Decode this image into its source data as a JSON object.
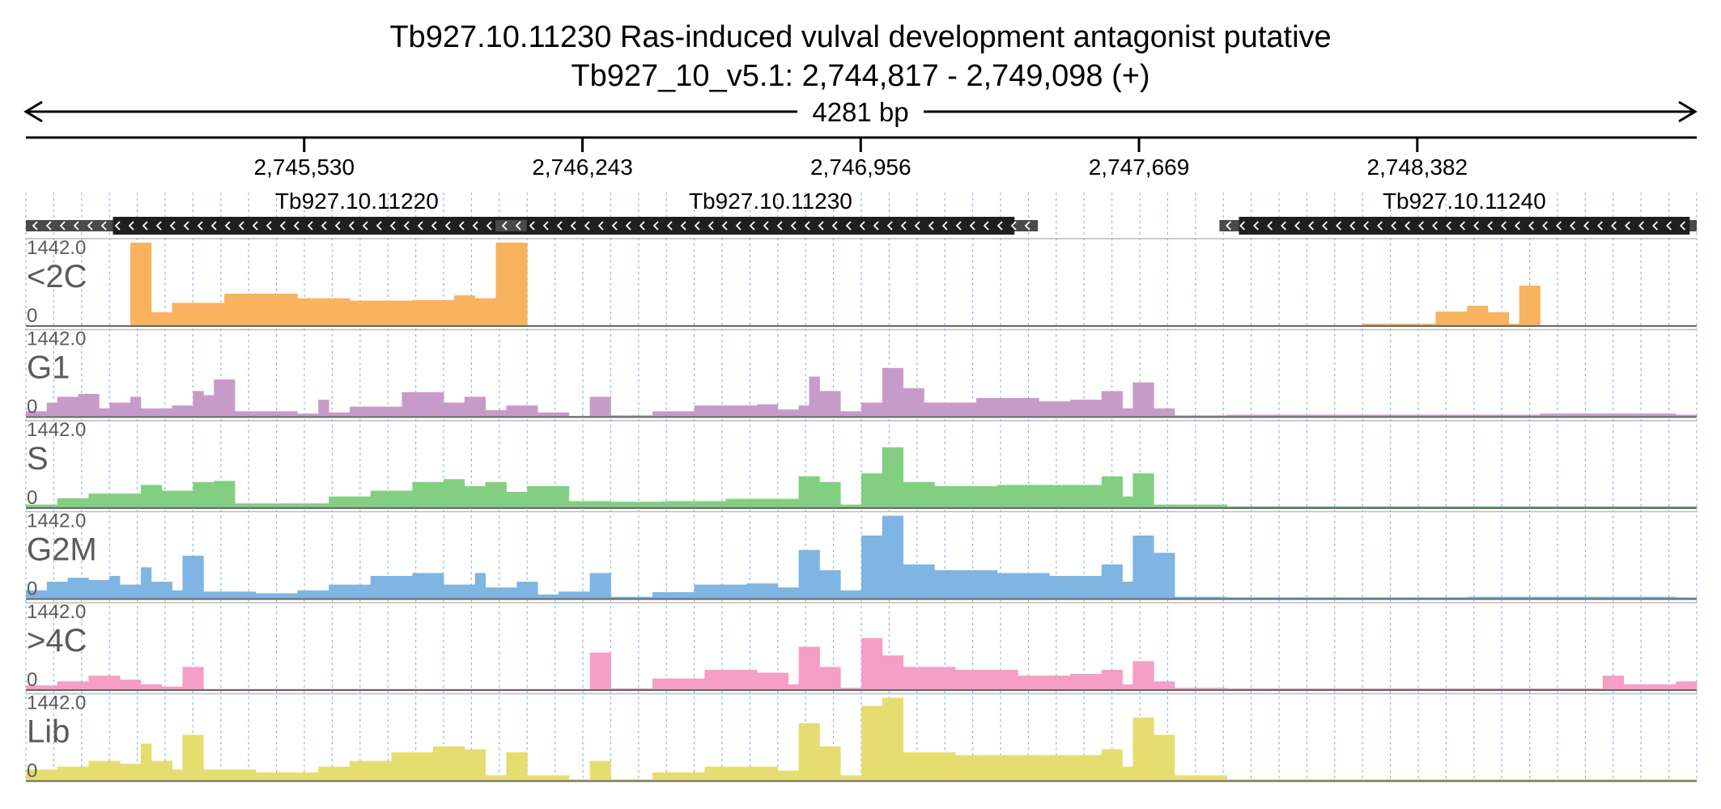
{
  "header": {
    "title": "Tb927.10.11230  Ras-induced vulval development antagonist  putative",
    "subtitle": "Tb927_10_v5.1: 2,744,817 - 2,749,098 (+)",
    "span_label": "4281 bp"
  },
  "colors": {
    "ruler": "#000000",
    "gene_fill": "#1f1f1f",
    "utr_fill": "#4a4a4a",
    "grid": "#6fa8dc",
    "track_label": "#5a5a5a",
    "baseline": "#666666"
  },
  "chart_data": {
    "type": "bar",
    "genome_range": [
      2744817,
      2749098
    ],
    "ruler_ticks": [
      {
        "pos": 2745530,
        "label": "2,745,530"
      },
      {
        "pos": 2746243,
        "label": "2,746,243"
      },
      {
        "pos": 2746956,
        "label": "2,746,956"
      },
      {
        "pos": 2747669,
        "label": "2,747,669"
      },
      {
        "pos": 2748382,
        "label": "2,748,382"
      }
    ],
    "genes": [
      {
        "name": "Tb927.10.11220",
        "strand": "-",
        "start": 2744817,
        "end": 2746318,
        "cds_start": 2745040,
        "cds_end": 2746290
      },
      {
        "name": "Tb927.10.11230",
        "strand": "-",
        "start": 2746020,
        "end": 2747410,
        "cds_start": 2746100,
        "cds_end": 2747350
      },
      {
        "name": "Tb927.10.11240",
        "strand": "-",
        "start": 2747875,
        "end": 2749098,
        "cds_start": 2747925,
        "cds_end": 2749080
      }
    ],
    "tracks": [
      {
        "name": "<2C",
        "color": "#f9b25e",
        "ymax_label": "1442.0",
        "ymin_label": "0",
        "ylim": [
          0,
          1442
        ],
        "series": []
      },
      {
        "name": "G1",
        "color": "#c79bc9",
        "ymax_label": "1442.0",
        "ymin_label": "0",
        "ylim": [
          0,
          1442
        ],
        "series": []
      },
      {
        "name": "S",
        "color": "#82cf82",
        "ymax_label": "1442.0",
        "ymin_label": "0",
        "ylim": [
          0,
          1442
        ],
        "series": []
      },
      {
        "name": "G2M",
        "color": "#7fb5e3",
        "ymax_label": "1442.0",
        "ymin_label": "0",
        "ylim": [
          0,
          1442
        ],
        "series": []
      },
      {
        "name": ">4C",
        "color": "#f59ec6",
        "ymax_label": "1442.0",
        "ymin_label": "0",
        "ylim": [
          0,
          1442
        ],
        "series": []
      },
      {
        "name": "Lib",
        "color": "#e6dd71",
        "ymax_label": "1442.0",
        "ymin_label": "0",
        "ylim": [
          0,
          1442
        ],
        "series": []
      }
    ],
    "profiles": {
      "<2C": [
        [
          2744817,
          0
        ],
        [
          2745080,
          0
        ],
        [
          2745090,
          1442
        ],
        [
          2745135,
          1442
        ],
        [
          2745150,
          240
        ],
        [
          2745200,
          400
        ],
        [
          2745330,
          560
        ],
        [
          2745500,
          480
        ],
        [
          2745650,
          440
        ],
        [
          2745800,
          450
        ],
        [
          2745920,
          530
        ],
        [
          2745970,
          480
        ],
        [
          2746020,
          150
        ],
        [
          2746030,
          1442
        ],
        [
          2746080,
          1442
        ],
        [
          2746090,
          0
        ],
        [
          2747900,
          10
        ],
        [
          2748050,
          10
        ],
        [
          2748250,
          40
        ],
        [
          2748420,
          250
        ],
        [
          2748500,
          350
        ],
        [
          2748560,
          240
        ],
        [
          2748620,
          40
        ],
        [
          2748630,
          700
        ],
        [
          2748680,
          700
        ],
        [
          2748690,
          0
        ],
        [
          2749098,
          0
        ]
      ],
      "G1": [
        [
          2744817,
          100
        ],
        [
          2744860,
          250
        ],
        [
          2744910,
          350
        ],
        [
          2744960,
          400
        ],
        [
          2745010,
          150
        ],
        [
          2745040,
          250
        ],
        [
          2745080,
          350
        ],
        [
          2745120,
          150
        ],
        [
          2745180,
          200
        ],
        [
          2745250,
          450
        ],
        [
          2745280,
          380
        ],
        [
          2745310,
          650
        ],
        [
          2745360,
          100
        ],
        [
          2745500,
          60
        ],
        [
          2745560,
          300
        ],
        [
          2745600,
          80
        ],
        [
          2745650,
          180
        ],
        [
          2745780,
          430
        ],
        [
          2745900,
          250
        ],
        [
          2745950,
          350
        ],
        [
          2746000,
          120
        ],
        [
          2746040,
          200
        ],
        [
          2746120,
          80
        ],
        [
          2746220,
          20
        ],
        [
          2746260,
          350
        ],
        [
          2746320,
          30
        ],
        [
          2746420,
          100
        ],
        [
          2746530,
          200
        ],
        [
          2746700,
          220
        ],
        [
          2746740,
          130
        ],
        [
          2746790,
          200
        ],
        [
          2746820,
          700
        ],
        [
          2746860,
          450
        ],
        [
          2746900,
          100
        ],
        [
          2746960,
          250
        ],
        [
          2747000,
          850
        ],
        [
          2747060,
          500
        ],
        [
          2747120,
          250
        ],
        [
          2747250,
          330
        ],
        [
          2747400,
          270
        ],
        [
          2747500,
          300
        ],
        [
          2747560,
          450
        ],
        [
          2747620,
          150
        ],
        [
          2747660,
          600
        ],
        [
          2747700,
          150
        ],
        [
          2747760,
          30
        ],
        [
          2747900,
          40
        ],
        [
          2748200,
          40
        ],
        [
          2748700,
          60
        ],
        [
          2749050,
          40
        ]
      ],
      "S": [
        [
          2744817,
          60
        ],
        [
          2744900,
          170
        ],
        [
          2744980,
          250
        ],
        [
          2745100,
          400
        ],
        [
          2745160,
          300
        ],
        [
          2745250,
          450
        ],
        [
          2745310,
          470
        ],
        [
          2745360,
          80
        ],
        [
          2745500,
          80
        ],
        [
          2745600,
          200
        ],
        [
          2745700,
          300
        ],
        [
          2745800,
          450
        ],
        [
          2745900,
          500
        ],
        [
          2745950,
          380
        ],
        [
          2746000,
          450
        ],
        [
          2746060,
          280
        ],
        [
          2746100,
          380
        ],
        [
          2746200,
          120
        ],
        [
          2746320,
          110
        ],
        [
          2746450,
          120
        ],
        [
          2746600,
          160
        ],
        [
          2746740,
          160
        ],
        [
          2746800,
          550
        ],
        [
          2746860,
          450
        ],
        [
          2746900,
          60
        ],
        [
          2746960,
          600
        ],
        [
          2747000,
          1050
        ],
        [
          2747060,
          450
        ],
        [
          2747150,
          380
        ],
        [
          2747300,
          400
        ],
        [
          2747450,
          400
        ],
        [
          2747560,
          550
        ],
        [
          2747620,
          200
        ],
        [
          2747660,
          600
        ],
        [
          2747700,
          60
        ],
        [
          2747900,
          30
        ],
        [
          2748500,
          30
        ],
        [
          2749050,
          30
        ]
      ],
      "G2M": [
        [
          2744817,
          150
        ],
        [
          2744860,
          300
        ],
        [
          2744920,
          370
        ],
        [
          2744980,
          330
        ],
        [
          2745020,
          400
        ],
        [
          2745060,
          250
        ],
        [
          2745100,
          550
        ],
        [
          2745140,
          300
        ],
        [
          2745180,
          150
        ],
        [
          2745210,
          750
        ],
        [
          2745260,
          130
        ],
        [
          2745400,
          100
        ],
        [
          2745500,
          150
        ],
        [
          2745600,
          250
        ],
        [
          2745700,
          400
        ],
        [
          2745800,
          450
        ],
        [
          2745900,
          250
        ],
        [
          2745960,
          450
        ],
        [
          2746000,
          200
        ],
        [
          2746080,
          300
        ],
        [
          2746120,
          80
        ],
        [
          2746180,
          130
        ],
        [
          2746260,
          450
        ],
        [
          2746320,
          40
        ],
        [
          2746420,
          120
        ],
        [
          2746520,
          250
        ],
        [
          2746650,
          270
        ],
        [
          2746740,
          200
        ],
        [
          2746800,
          850
        ],
        [
          2746860,
          500
        ],
        [
          2746900,
          150
        ],
        [
          2746960,
          1100
        ],
        [
          2747000,
          1442
        ],
        [
          2747060,
          600
        ],
        [
          2747150,
          500
        ],
        [
          2747300,
          450
        ],
        [
          2747450,
          400
        ],
        [
          2747560,
          600
        ],
        [
          2747620,
          300
        ],
        [
          2747660,
          1100
        ],
        [
          2747700,
          800
        ],
        [
          2747760,
          40
        ],
        [
          2747900,
          30
        ],
        [
          2748500,
          40
        ],
        [
          2749050,
          30
        ]
      ],
      ">4C": [
        [
          2744817,
          80
        ],
        [
          2744900,
          150
        ],
        [
          2744980,
          250
        ],
        [
          2745060,
          180
        ],
        [
          2745120,
          100
        ],
        [
          2745160,
          60
        ],
        [
          2745210,
          400
        ],
        [
          2745260,
          20
        ],
        [
          2746200,
          20
        ],
        [
          2746260,
          650
        ],
        [
          2746320,
          30
        ],
        [
          2746420,
          200
        ],
        [
          2746560,
          350
        ],
        [
          2746680,
          300
        ],
        [
          2746760,
          100
        ],
        [
          2746800,
          750
        ],
        [
          2746860,
          400
        ],
        [
          2746900,
          40
        ],
        [
          2746960,
          900
        ],
        [
          2747000,
          600
        ],
        [
          2747060,
          400
        ],
        [
          2747200,
          350
        ],
        [
          2747350,
          250
        ],
        [
          2747500,
          280
        ],
        [
          2747560,
          350
        ],
        [
          2747620,
          100
        ],
        [
          2747660,
          500
        ],
        [
          2747700,
          150
        ],
        [
          2747760,
          40
        ],
        [
          2747900,
          30
        ],
        [
          2748500,
          30
        ],
        [
          2748850,
          40
        ],
        [
          2748870,
          250
        ],
        [
          2748920,
          100
        ],
        [
          2749050,
          150
        ],
        [
          2749098,
          150
        ]
      ],
      "Lib": [
        [
          2744817,
          200
        ],
        [
          2744900,
          250
        ],
        [
          2744980,
          350
        ],
        [
          2745060,
          300
        ],
        [
          2745100,
          650
        ],
        [
          2745140,
          350
        ],
        [
          2745180,
          200
        ],
        [
          2745210,
          800
        ],
        [
          2745260,
          200
        ],
        [
          2745400,
          150
        ],
        [
          2745500,
          150
        ],
        [
          2745560,
          250
        ],
        [
          2745650,
          350
        ],
        [
          2745750,
          500
        ],
        [
          2745850,
          600
        ],
        [
          2745950,
          550
        ],
        [
          2746000,
          100
        ],
        [
          2746040,
          500
        ],
        [
          2746100,
          100
        ],
        [
          2746200,
          30
        ],
        [
          2746260,
          350
        ],
        [
          2746320,
          30
        ],
        [
          2746420,
          150
        ],
        [
          2746550,
          250
        ],
        [
          2746700,
          250
        ],
        [
          2746740,
          180
        ],
        [
          2746800,
          1000
        ],
        [
          2746860,
          600
        ],
        [
          2746900,
          100
        ],
        [
          2746960,
          1300
        ],
        [
          2747000,
          1442
        ],
        [
          2747060,
          500
        ],
        [
          2747200,
          450
        ],
        [
          2747400,
          450
        ],
        [
          2747560,
          550
        ],
        [
          2747620,
          250
        ],
        [
          2747660,
          1100
        ],
        [
          2747700,
          800
        ],
        [
          2747760,
          100
        ],
        [
          2747900,
          30
        ],
        [
          2748500,
          30
        ],
        [
          2749050,
          30
        ]
      ]
    }
  }
}
